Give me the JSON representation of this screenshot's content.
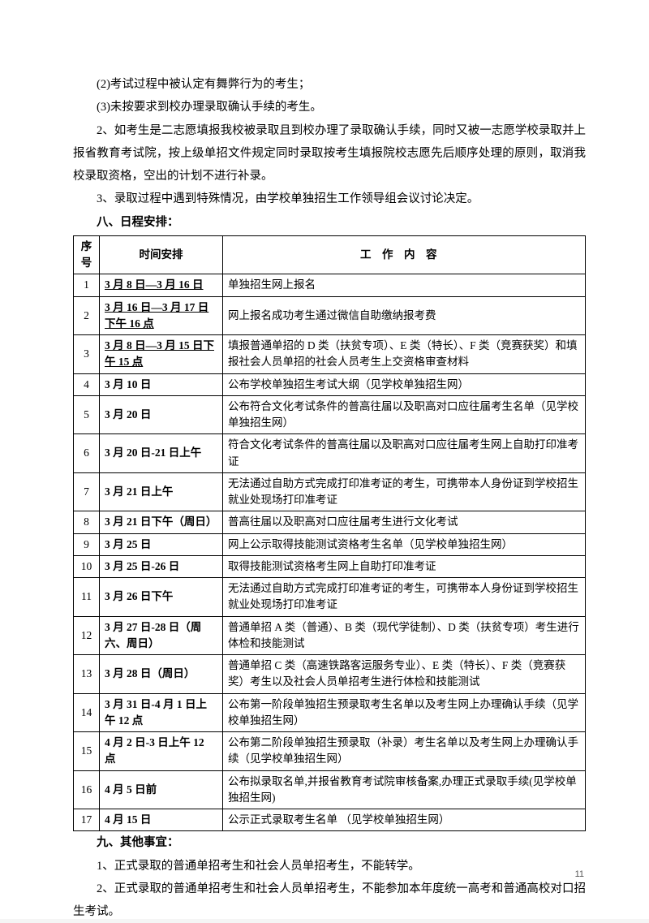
{
  "intro": {
    "l1": "(2)考试过程中被认定有舞弊行为的考生；",
    "l2": "(3)未按要求到校办理录取确认手续的考生。",
    "p2": "2、如考生是二志愿填报我校被录取且到校办理了录取确认手续，同时又被一志愿学校录取并上报省教育考试院，按上级单招文件规定同时录取按考生填报院校志愿先后顺序处理的原则，取消我校录取资格，空出的计划不进行补录。",
    "p3": "3、录取过程中遇到特殊情况，由学校单独招生工作领导组会议讨论决定。",
    "s8": "八、日程安排：",
    "s9": "九、其他事宜：",
    "o1": "1、正式录取的普通单招考生和社会人员单招考生，不能转学。",
    "o2": "2、正式录取的普通单招考生和社会人员单招考生，不能参加本年度统一高考和普通高校对口招生考试。"
  },
  "table": {
    "h_num": "序号",
    "h_time": "时间安排",
    "h_content": "工作内容",
    "rows": [
      {
        "n": "1",
        "t": "3 月 8 日—3 月 16 日",
        "u": true,
        "c": "单独招生网上报名"
      },
      {
        "n": "2",
        "t": "3 月 16 日—3 月 17 日下午 16 点",
        "u": true,
        "c": "网上报名成功考生通过微信自助缴纳报考费"
      },
      {
        "n": "3",
        "t": "3 月 8 日—3 月 15 日下午 15 点",
        "u": true,
        "c": "填报普通单招的 D 类（扶贫专项）、E 类（特长）、F 类（竞赛获奖）和填报社会人员单招的社会人员考生上交资格审查材料"
      },
      {
        "n": "4",
        "t": "3 月 10 日",
        "u": false,
        "c": "公布学校单独招生考试大纲（见学校单独招生网）"
      },
      {
        "n": "5",
        "t": "3 月 20 日",
        "u": false,
        "c": "公布符合文化考试条件的普高往届以及职高对口应往届考生名单（见学校单独招生网）"
      },
      {
        "n": "6",
        "t": "3 月 20 日-21 日上午",
        "u": false,
        "c": "符合文化考试条件的普高往届以及职高对口应往届考生网上自助打印准考证"
      },
      {
        "n": "7",
        "t": "3 月 21 日上午",
        "u": false,
        "c": "无法通过自助方式完成打印准考证的考生，可携带本人身份证到学校招生就业处现场打印准考证"
      },
      {
        "n": "8",
        "t": "3 月 21 日下午（周日）",
        "u": false,
        "c": "普高往届以及职高对口应往届考生进行文化考试"
      },
      {
        "n": "9",
        "t": "3 月 25 日",
        "u": false,
        "c": "网上公示取得技能测试资格考生名单（见学校单独招生网）"
      },
      {
        "n": "10",
        "t": "3 月 25 日-26 日",
        "u": false,
        "c": "取得技能测试资格考生网上自助打印准考证"
      },
      {
        "n": "11",
        "t": "3 月 26 日下午",
        "u": false,
        "c": "无法通过自助方式完成打印准考证的考生，可携带本人身份证到学校招生就业处现场打印准考证"
      },
      {
        "n": "12",
        "t": "3 月 27 日-28 日（周六、周日）",
        "u": false,
        "c": "普通单招 A 类（普通）、B 类（现代学徒制）、D 类（扶贫专项）考生进行体检和技能测试"
      },
      {
        "n": "13",
        "t": "3 月 28 日（周日）",
        "u": false,
        "c": "普通单招 C 类（高速铁路客运服务专业）、E 类（特长）、F 类（竞赛获奖）考生以及社会人员单招考生进行体检和技能测试"
      },
      {
        "n": "14",
        "t": "3 月 31 日-4 月 1 日上午 12 点",
        "u": false,
        "c": "公布第一阶段单独招生预录取考生名单以及考生网上办理确认手续（见学校单独招生网）"
      },
      {
        "n": "15",
        "t": "4 月 2 日-3 日上午 12 点",
        "u": false,
        "c": "公布第二阶段单独招生预录取（补录）考生名单以及考生网上办理确认手续（见学校单独招生网）"
      },
      {
        "n": "16",
        "t": "4 月 5 日前",
        "u": false,
        "c": "公布拟录取名单,并报省教育考试院审核备案,办理正式录取手续(见学校单独招生网)"
      },
      {
        "n": "17",
        "t": "4 月 15 日",
        "u": false,
        "c": "公示正式录取考生名单 （见学校单独招生网）"
      }
    ]
  },
  "page_num": "11"
}
